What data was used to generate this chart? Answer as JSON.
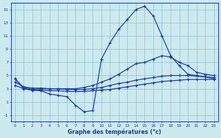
{
  "hours": [
    0,
    1,
    2,
    3,
    4,
    5,
    6,
    7,
    8,
    9,
    10,
    11,
    12,
    13,
    14,
    15,
    16,
    17,
    18,
    19,
    20,
    21,
    22,
    23
  ],
  "temp_instant": [
    4.5,
    3.0,
    2.8,
    2.7,
    2.2,
    2.0,
    1.8,
    0.5,
    -0.5,
    -0.3,
    7.5,
    10.0,
    12.0,
    13.5,
    15.0,
    15.5,
    14.0,
    11.0,
    8.0,
    6.5,
    5.2,
    5.0,
    4.8,
    4.5
  ],
  "temp_max": [
    4.5,
    3.2,
    2.9,
    3.0,
    3.0,
    3.0,
    3.0,
    3.0,
    3.2,
    3.5,
    4.0,
    4.5,
    5.2,
    6.0,
    6.8,
    7.0,
    7.5,
    8.0,
    7.8,
    7.0,
    6.5,
    5.5,
    5.2,
    5.0
  ],
  "temp_avg": [
    4.0,
    3.3,
    3.1,
    3.1,
    3.0,
    3.0,
    2.9,
    2.9,
    2.9,
    3.0,
    3.2,
    3.5,
    3.8,
    4.0,
    4.3,
    4.5,
    4.7,
    4.9,
    5.0,
    5.0,
    5.0,
    4.9,
    4.8,
    4.7
  ],
  "temp_min": [
    3.5,
    3.0,
    2.8,
    2.8,
    2.7,
    2.7,
    2.6,
    2.6,
    2.6,
    2.7,
    2.8,
    2.9,
    3.1,
    3.3,
    3.5,
    3.7,
    3.9,
    4.1,
    4.2,
    4.3,
    4.4,
    4.4,
    4.4,
    4.4
  ],
  "line_color": "#1a3ab5",
  "bg_color": "#cce9ed",
  "grid_color": "#89bfcc",
  "xlabel": "Graphe des températures (°c)",
  "ylim": [
    -2,
    16
  ],
  "yticks": [
    -1,
    1,
    3,
    5,
    7,
    9,
    11,
    13,
    15
  ],
  "xticks": [
    0,
    1,
    2,
    3,
    4,
    5,
    6,
    7,
    8,
    9,
    10,
    11,
    12,
    13,
    14,
    15,
    16,
    17,
    18,
    19,
    20,
    21,
    22,
    23
  ]
}
